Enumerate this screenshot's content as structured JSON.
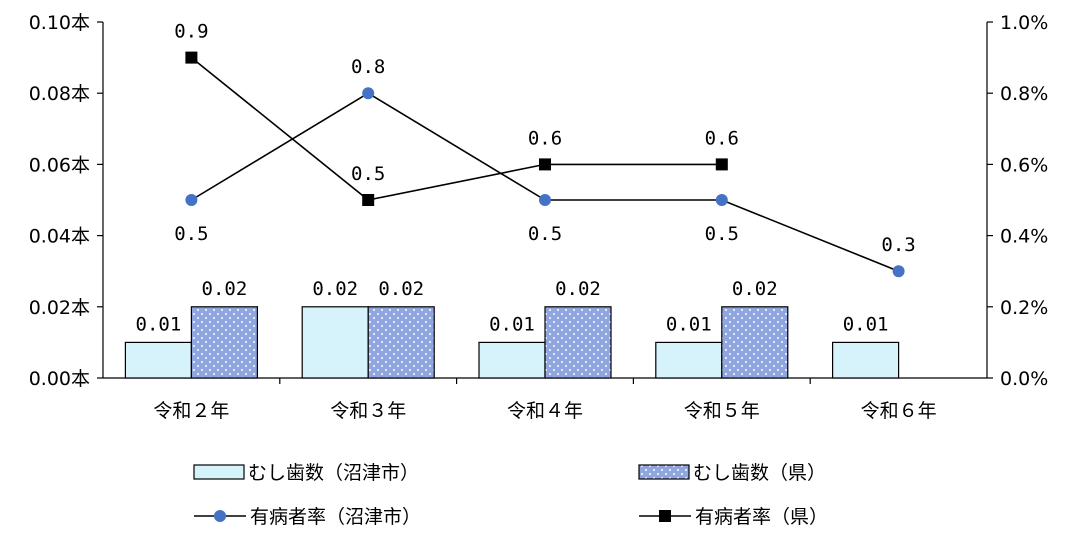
{
  "chart_data": {
    "type": "bar",
    "categories": [
      "令和２年",
      "令和３年",
      "令和４年",
      "令和５年",
      "令和６年"
    ],
    "left_axis": {
      "ylim": [
        0,
        0.1
      ],
      "ticks": [
        0,
        0.02,
        0.04,
        0.06,
        0.08,
        0.1
      ],
      "tick_labels": [
        "0.00本",
        "0.02本",
        "0.04本",
        "0.06本",
        "0.08本",
        "0.10本"
      ]
    },
    "right_axis": {
      "ylim": [
        0,
        1.0
      ],
      "ticks": [
        0,
        0.2,
        0.4,
        0.6,
        0.8,
        1.0
      ],
      "tick_labels": [
        "0.0%",
        "0.2%",
        "0.4%",
        "0.6%",
        "0.8%",
        "1.0%"
      ]
    },
    "bar_series": [
      {
        "name": "むし歯数（沼津市）",
        "values": [
          0.01,
          0.02,
          0.01,
          0.01,
          0.01
        ],
        "labels": [
          "0.01",
          "0.02",
          "0.01",
          "0.01",
          "0.01"
        ],
        "color": "#d6f3fc",
        "axis": "left"
      },
      {
        "name": "むし歯数（県）",
        "values": [
          0.02,
          0.02,
          0.02,
          0.02,
          null
        ],
        "labels": [
          "0.02",
          "0.02",
          "0.02",
          "0.02",
          ""
        ],
        "color": "#8fa6e0",
        "pattern": "dotted",
        "axis": "left"
      }
    ],
    "line_series": [
      {
        "name": "有病者率（沼津市）",
        "values": [
          0.5,
          0.8,
          0.5,
          0.5,
          0.3
        ],
        "labels": [
          "0.5",
          "0.8",
          "0.5",
          "0.5",
          "0.3"
        ],
        "label_pos": [
          "below",
          "above",
          "below",
          "below",
          "above"
        ],
        "marker": "circle",
        "color": "#4472c4",
        "axis": "right"
      },
      {
        "name": "有病者率（県）",
        "values": [
          0.9,
          0.5,
          0.6,
          0.6,
          null
        ],
        "labels": [
          "0.9",
          "0.5",
          "0.6",
          "0.6",
          ""
        ],
        "label_pos": [
          "above",
          "above",
          "above",
          "above",
          "above"
        ],
        "marker": "square",
        "color": "#000000",
        "axis": "right"
      }
    ],
    "legend": "bottom",
    "grid": false
  }
}
